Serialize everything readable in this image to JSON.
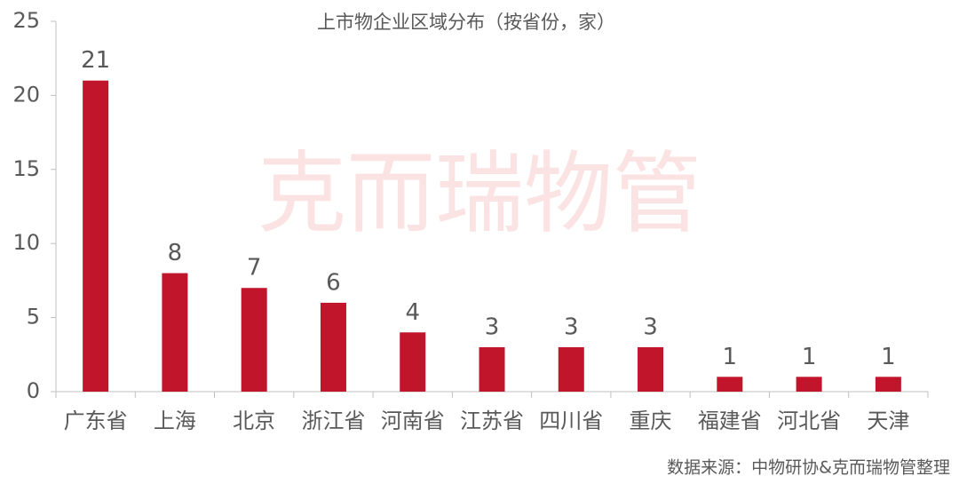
{
  "chart_data": {
    "type": "bar",
    "title": "上市物企业区域分布（按省份，家）",
    "categories": [
      "广东省",
      "上海",
      "北京",
      "浙江省",
      "河南省",
      "江苏省",
      "四川省",
      "重庆",
      "福建省",
      "河北省",
      "天津"
    ],
    "values": [
      21,
      8,
      7,
      6,
      4,
      3,
      3,
      3,
      1,
      1,
      1
    ],
    "color": "#c0152b",
    "ylim": [
      0,
      25
    ],
    "yticks": [
      0,
      5,
      10,
      15,
      20,
      25
    ],
    "watermark": "克而瑞物管",
    "source": "数据来源：中物研协&克而瑞物管整理"
  }
}
